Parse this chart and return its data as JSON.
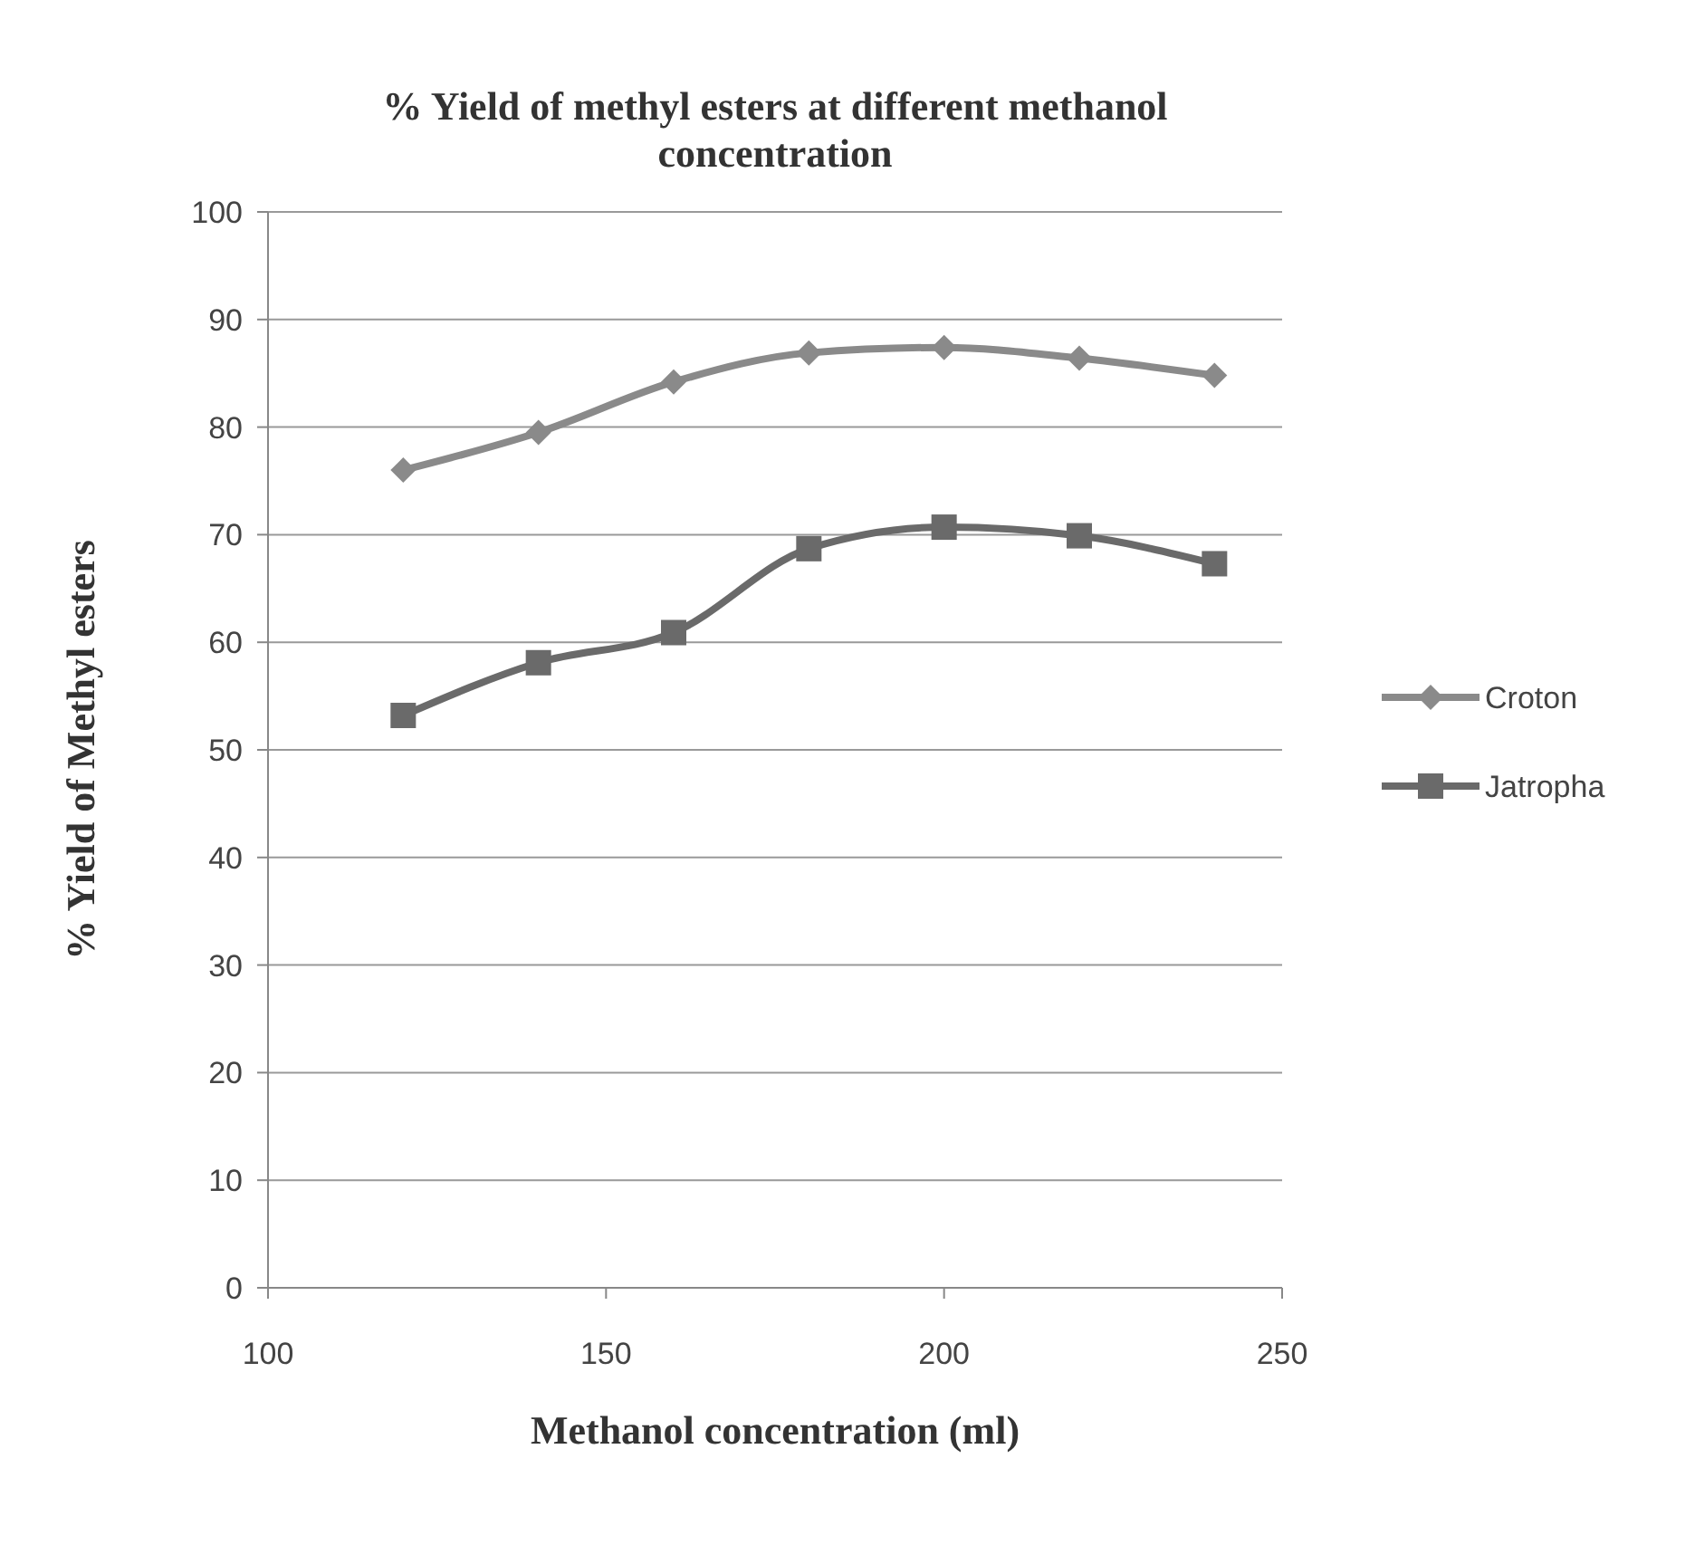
{
  "chart_data": {
    "type": "line",
    "title": "% Yield of methyl esters at different methanol concentration",
    "xlabel": "Methanol concentration (ml)",
    "ylabel": "% Yield of Methyl esters",
    "x": [
      120,
      140,
      160,
      180,
      200,
      220,
      240
    ],
    "series": [
      {
        "name": "Croton",
        "color": "#8a8a8a",
        "marker": "diamond",
        "values": [
          76,
          79.5,
          84.2,
          86.9,
          87.4,
          86.4,
          84.8
        ]
      },
      {
        "name": "Jatropha",
        "color": "#6a6a6a",
        "marker": "square",
        "values": [
          53.2,
          58.1,
          60.9,
          68.7,
          70.7,
          69.9,
          67.3
        ]
      }
    ],
    "xlim": [
      100,
      250
    ],
    "xticks": [
      100,
      150,
      200,
      250
    ],
    "ylim": [
      0,
      100
    ],
    "yticks": [
      0,
      10,
      20,
      30,
      40,
      50,
      60,
      70,
      80,
      90,
      100
    ],
    "grid": "y",
    "legend": "right"
  }
}
